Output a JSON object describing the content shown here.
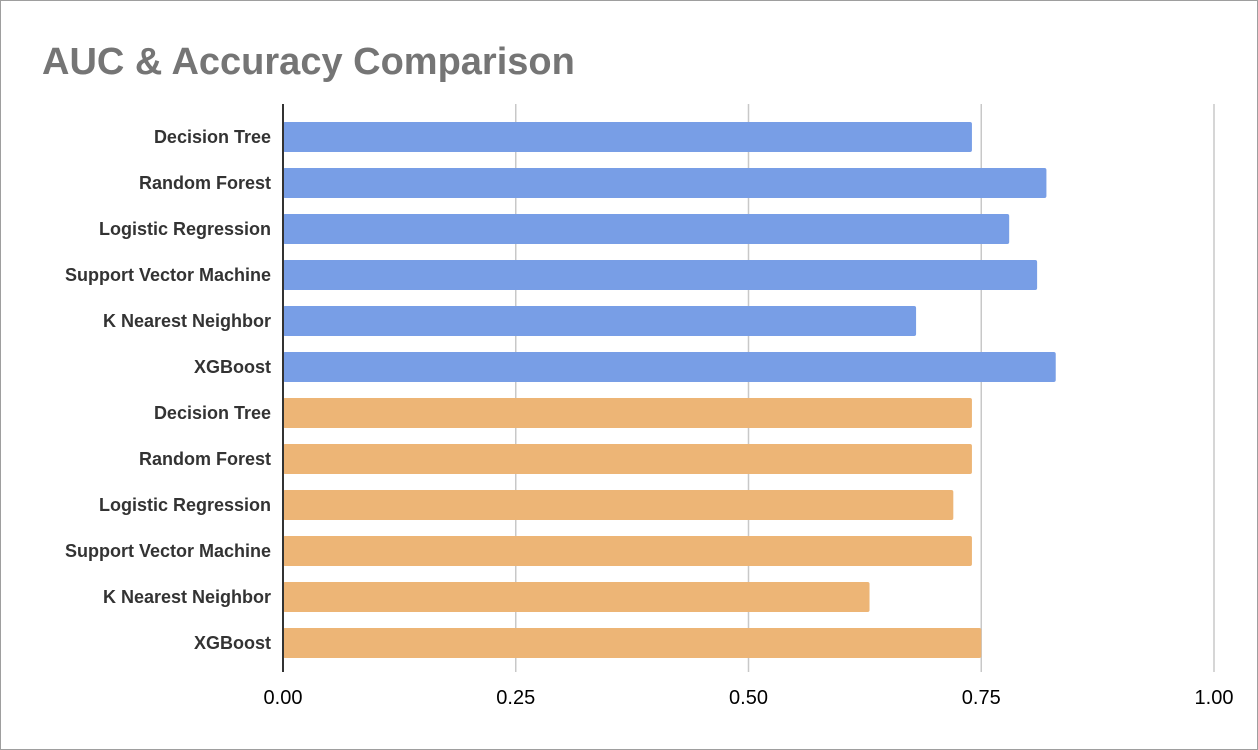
{
  "chart_data": {
    "type": "bar",
    "orientation": "horizontal",
    "title": "AUC & Accuracy Comparison",
    "xlabel": "",
    "ylabel": "",
    "xlim": [
      0,
      1
    ],
    "xticks": [
      "0.00",
      "0.25",
      "0.50",
      "0.75",
      "1.00"
    ],
    "grid": true,
    "legend": "none",
    "categories": [
      "Decision Tree",
      "Random Forest",
      "Logistic Regression",
      "Support Vector Machine",
      "K Nearest Neighbor",
      "XGBoost",
      "Decision Tree",
      "Random Forest",
      "Logistic Regression",
      "Support Vector Machine",
      "K Nearest Neighbor",
      "XGBoost"
    ],
    "values": [
      0.74,
      0.82,
      0.78,
      0.81,
      0.68,
      0.83,
      0.74,
      0.74,
      0.72,
      0.74,
      0.63,
      0.75
    ],
    "bar_colors": [
      "#789ee6",
      "#789ee6",
      "#789ee6",
      "#789ee6",
      "#789ee6",
      "#789ee6",
      "#edb576",
      "#edb576",
      "#edb576",
      "#edb576",
      "#edb576",
      "#edb576"
    ]
  }
}
